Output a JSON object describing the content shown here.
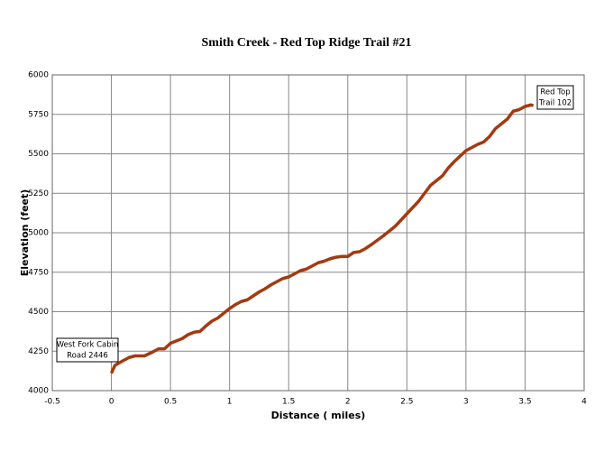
{
  "chart_data": {
    "type": "line",
    "title": "Smith Creek - Red Top Ridge Trail #21",
    "x_label": "Distance ( miles)",
    "y_label": "Elevation (feet)",
    "xlim": [
      -0.5,
      4
    ],
    "xticks": [
      -0.5,
      0,
      0.5,
      1,
      1.5,
      2,
      2.5,
      3,
      3.5,
      4
    ],
    "ylim": [
      4000,
      6000
    ],
    "yticks": [
      4000,
      4250,
      4500,
      4750,
      5000,
      5250,
      5500,
      5750,
      6000
    ],
    "grid": true,
    "series": [
      {
        "name": "Elevation",
        "color": "#a33a12",
        "x": [
          0,
          0.03,
          0.1,
          0.15,
          0.2,
          0.28,
          0.35,
          0.4,
          0.45,
          0.5,
          0.6,
          0.65,
          0.7,
          0.75,
          0.8,
          0.85,
          0.9,
          0.95,
          1.0,
          1.05,
          1.1,
          1.15,
          1.2,
          1.25,
          1.3,
          1.35,
          1.4,
          1.45,
          1.5,
          1.55,
          1.6,
          1.65,
          1.7,
          1.75,
          1.8,
          1.85,
          1.9,
          1.95,
          2.0,
          2.05,
          2.1,
          2.15,
          2.2,
          2.3,
          2.4,
          2.5,
          2.6,
          2.7,
          2.8,
          2.85,
          2.9,
          3.0,
          3.1,
          3.15,
          3.2,
          3.25,
          3.3,
          3.35,
          3.4,
          3.45,
          3.5,
          3.55,
          3.57
        ],
        "values": [
          4110,
          4160,
          4190,
          4210,
          4220,
          4220,
          4245,
          4265,
          4265,
          4300,
          4330,
          4355,
          4370,
          4375,
          4410,
          4440,
          4460,
          4490,
          4520,
          4545,
          4565,
          4575,
          4600,
          4625,
          4645,
          4670,
          4690,
          4710,
          4720,
          4740,
          4760,
          4770,
          4790,
          4810,
          4820,
          4835,
          4845,
          4850,
          4850,
          4875,
          4880,
          4900,
          4925,
          4980,
          5040,
          5120,
          5200,
          5300,
          5360,
          5410,
          5450,
          5520,
          5560,
          5575,
          5610,
          5660,
          5690,
          5720,
          5770,
          5780,
          5800,
          5810,
          5805
        ]
      }
    ],
    "annotations": [
      {
        "lines": [
          "West Fork Cabin",
          "Road 2446"
        ]
      },
      {
        "lines": [
          "Red Top",
          "Trail 102"
        ]
      }
    ]
  }
}
